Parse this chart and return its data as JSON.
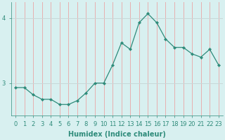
{
  "x": [
    0,
    1,
    2,
    3,
    4,
    5,
    6,
    7,
    8,
    9,
    10,
    11,
    12,
    13,
    14,
    15,
    16,
    17,
    18,
    19,
    20,
    21,
    22,
    23
  ],
  "y": [
    2.93,
    2.93,
    2.82,
    2.75,
    2.75,
    2.67,
    2.67,
    2.73,
    2.85,
    3.0,
    3.0,
    3.28,
    3.62,
    3.52,
    3.93,
    4.07,
    3.93,
    3.68,
    3.55,
    3.55,
    3.45,
    3.4,
    3.52,
    3.28
  ],
  "line_color": "#2e8b7a",
  "marker": "D",
  "marker_size": 2.2,
  "bg_color": "#d8f0f0",
  "grid_color_v": "#e8b0b0",
  "grid_color_h": "#c8d8d8",
  "xlabel": "Humidex (Indice chaleur)",
  "xlim": [
    -0.5,
    23.5
  ],
  "ylim": [
    2.5,
    4.25
  ],
  "yticks": [
    3,
    4
  ],
  "xtick_labels": [
    "0",
    "1",
    "2",
    "3",
    "4",
    "5",
    "6",
    "7",
    "8",
    "9",
    "10",
    "11",
    "12",
    "13",
    "14",
    "15",
    "16",
    "17",
    "18",
    "19",
    "20",
    "21",
    "22",
    "23"
  ],
  "xlabel_fontsize": 7.0,
  "tick_fontsize": 6.0,
  "linewidth": 0.9
}
